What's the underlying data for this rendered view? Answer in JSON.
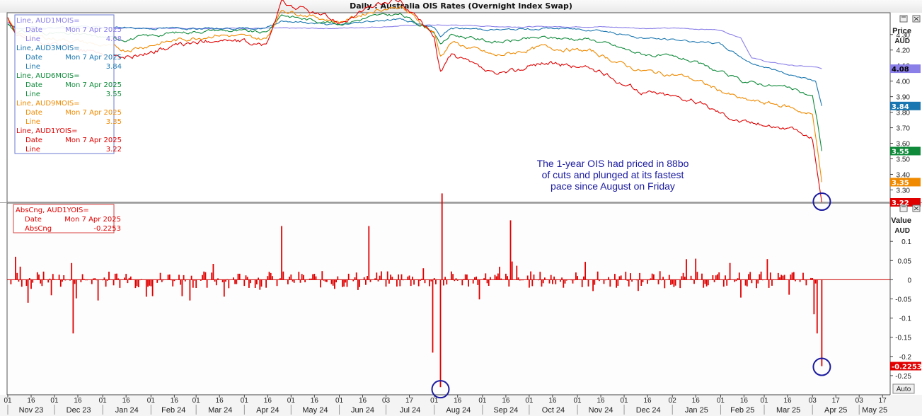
{
  "window": {
    "title": "Daily : Australia OIS Rates (Overnight Index Swap)"
  },
  "colors": {
    "AUD1MOIS": "#8a7fe8",
    "AUD3MOIS": "#1a76b0",
    "AUD6MOIS": "#0f8a3a",
    "AUD9MOIS": "#f08a00",
    "AUD1YOIS": "#e00000",
    "annotation_text": "#1a1aa0",
    "circle": "#1a1aa0"
  },
  "price_panel": {
    "axis_title": "Price",
    "axis_unit": "AUD",
    "legend": [
      {
        "series": "Line, AUD1MOIS=",
        "date_label": "Date",
        "date": "Mon 7 Apr 2025",
        "value_label": "Line",
        "value": "4.08",
        "color": "#8a7fe8"
      },
      {
        "series": "Line, AUD3MOIS=",
        "date_label": "Date",
        "date": "Mon 7 Apr 2025",
        "value_label": "Line",
        "value": "3.84",
        "color": "#1a76b0"
      },
      {
        "series": "Line, AUD6MOIS=",
        "date_label": "Date",
        "date": "Mon 7 Apr 2025",
        "value_label": "Line",
        "value": "3.55",
        "color": "#0f8a3a"
      },
      {
        "series": "Line, AUD9MOIS=",
        "date_label": "Date",
        "date": "Mon 7 Apr 2025",
        "value_label": "Line",
        "value": "3.35",
        "color": "#f08a00"
      },
      {
        "series": "Line, AUD1YOIS=",
        "date_label": "Date",
        "date": "Mon 7 Apr 2025",
        "value_label": "Line",
        "value": "3.22",
        "color": "#e00000"
      }
    ],
    "annotation": [
      "The 1-year OIS had priced in 88bo",
      "of cuts and plunged at its fastest",
      "pace since August on Friday"
    ]
  },
  "change_panel": {
    "axis_title": "Value",
    "axis_unit": "AUD",
    "legend": {
      "series": "AbsCng, AUD1YOIS=",
      "date_label": "Date",
      "date": "Mon 7 Apr 2025",
      "value_label": "AbsCng",
      "value": "-0.2253",
      "color": "#e00000"
    },
    "value_tag": "-0.2253",
    "auto_button": "Auto"
  },
  "chart_data": [
    {
      "type": "line",
      "title": "Daily : Australia OIS Rates (Overnight Index Swap)",
      "ylabel": "Price AUD",
      "ylim": [
        3.22,
        4.44
      ],
      "y_ticks": [
        "4.30",
        "4.20",
        "4.10",
        "4.00",
        "3.90",
        "3.80",
        "3.70",
        "3.60",
        "3.50",
        "3.40",
        "3.30"
      ],
      "x_range": [
        "2023-11-01",
        "2025-05-20"
      ],
      "grid": false,
      "legend_position": "top-left",
      "series": [
        {
          "name": "AUD1MOIS=",
          "color": "#8a7fe8",
          "points": [
            [
              "2023-11-01",
              4.38
            ],
            [
              "2023-11-06",
              4.34
            ],
            [
              "2023-11-30",
              4.34
            ],
            [
              "2024-01-31",
              4.34
            ],
            [
              "2024-03-31",
              4.34
            ],
            [
              "2024-04-30",
              4.34
            ],
            [
              "2024-05-31",
              4.34
            ],
            [
              "2024-06-30",
              4.35
            ],
            [
              "2024-07-20",
              4.36
            ],
            [
              "2024-08-15",
              4.36
            ],
            [
              "2024-09-15",
              4.35
            ],
            [
              "2024-10-15",
              4.35
            ],
            [
              "2024-11-15",
              4.35
            ],
            [
              "2024-12-15",
              4.34
            ],
            [
              "2025-01-05",
              4.34
            ],
            [
              "2025-01-31",
              4.33
            ],
            [
              "2025-02-14",
              4.28
            ],
            [
              "2025-02-21",
              4.15
            ],
            [
              "2025-03-05",
              4.12
            ],
            [
              "2025-03-20",
              4.1
            ],
            [
              "2025-04-04",
              4.09
            ],
            [
              "2025-04-07",
              4.08
            ]
          ]
        },
        {
          "name": "AUD3MOIS=",
          "color": "#1a76b0",
          "points": [
            [
              "2023-11-01",
              4.36
            ],
            [
              "2023-11-06",
              4.34
            ],
            [
              "2023-12-15",
              4.35
            ],
            [
              "2024-01-31",
              4.34
            ],
            [
              "2024-03-15",
              4.34
            ],
            [
              "2024-04-15",
              4.34
            ],
            [
              "2024-04-25",
              4.39
            ],
            [
              "2024-05-31",
              4.36
            ],
            [
              "2024-06-25",
              4.39
            ],
            [
              "2024-07-10",
              4.4
            ],
            [
              "2024-08-01",
              4.34
            ],
            [
              "2024-08-05",
              4.29
            ],
            [
              "2024-08-12",
              4.34
            ],
            [
              "2024-09-15",
              4.33
            ],
            [
              "2024-10-15",
              4.34
            ],
            [
              "2024-11-15",
              4.33
            ],
            [
              "2024-12-10",
              4.28
            ],
            [
              "2025-01-10",
              4.26
            ],
            [
              "2025-01-31",
              4.24
            ],
            [
              "2025-02-20",
              4.12
            ],
            [
              "2025-03-15",
              4.05
            ],
            [
              "2025-04-03",
              4.0
            ],
            [
              "2025-04-07",
              3.84
            ]
          ]
        },
        {
          "name": "AUD6MOIS=",
          "color": "#0f8a3a",
          "points": [
            [
              "2023-11-01",
              4.37
            ],
            [
              "2023-11-06",
              4.32
            ],
            [
              "2023-12-15",
              4.3
            ],
            [
              "2024-01-15",
              4.27
            ],
            [
              "2024-02-15",
              4.31
            ],
            [
              "2024-03-15",
              4.33
            ],
            [
              "2024-04-15",
              4.31
            ],
            [
              "2024-04-25",
              4.43
            ],
            [
              "2024-05-10",
              4.4
            ],
            [
              "2024-06-01",
              4.37
            ],
            [
              "2024-06-25",
              4.42
            ],
            [
              "2024-07-10",
              4.43
            ],
            [
              "2024-08-01",
              4.32
            ],
            [
              "2024-08-05",
              4.23
            ],
            [
              "2024-08-12",
              4.3
            ],
            [
              "2024-09-10",
              4.25
            ],
            [
              "2024-10-10",
              4.28
            ],
            [
              "2024-11-10",
              4.27
            ],
            [
              "2024-12-10",
              4.18
            ],
            [
              "2025-01-10",
              4.14
            ],
            [
              "2025-02-15",
              4.0
            ],
            [
              "2025-03-15",
              3.96
            ],
            [
              "2025-04-01",
              3.9
            ],
            [
              "2025-04-04",
              3.75
            ],
            [
              "2025-04-07",
              3.55
            ]
          ]
        },
        {
          "name": "AUD9MOIS=",
          "color": "#f08a00",
          "points": [
            [
              "2023-11-01",
              4.4
            ],
            [
              "2023-11-06",
              4.3
            ],
            [
              "2023-12-15",
              4.26
            ],
            [
              "2024-01-15",
              4.2
            ],
            [
              "2024-02-15",
              4.26
            ],
            [
              "2024-03-15",
              4.3
            ],
            [
              "2024-04-15",
              4.27
            ],
            [
              "2024-04-25",
              4.46
            ],
            [
              "2024-05-10",
              4.43
            ],
            [
              "2024-06-01",
              4.38
            ],
            [
              "2024-06-25",
              4.46
            ],
            [
              "2024-07-10",
              4.48
            ],
            [
              "2024-08-01",
              4.31
            ],
            [
              "2024-08-05",
              4.16
            ],
            [
              "2024-08-12",
              4.25
            ],
            [
              "2024-09-10",
              4.16
            ],
            [
              "2024-10-10",
              4.22
            ],
            [
              "2024-11-10",
              4.19
            ],
            [
              "2024-12-10",
              4.07
            ],
            [
              "2025-01-10",
              4.03
            ],
            [
              "2025-02-15",
              3.88
            ],
            [
              "2025-03-15",
              3.84
            ],
            [
              "2025-04-01",
              3.78
            ],
            [
              "2025-04-04",
              3.58
            ],
            [
              "2025-04-07",
              3.35
            ]
          ]
        },
        {
          "name": "AUD1YOIS=",
          "color": "#e00000",
          "points": [
            [
              "2023-11-01",
              4.41
            ],
            [
              "2023-11-06",
              4.28
            ],
            [
              "2023-12-15",
              4.21
            ],
            [
              "2024-01-15",
              4.15
            ],
            [
              "2024-02-15",
              4.22
            ],
            [
              "2024-03-15",
              4.27
            ],
            [
              "2024-04-15",
              4.23
            ],
            [
              "2024-04-25",
              4.5
            ],
            [
              "2024-05-10",
              4.46
            ],
            [
              "2024-06-01",
              4.38
            ],
            [
              "2024-06-25",
              4.49
            ],
            [
              "2024-07-10",
              4.52
            ],
            [
              "2024-08-01",
              4.29
            ],
            [
              "2024-08-05",
              4.06
            ],
            [
              "2024-08-12",
              4.17
            ],
            [
              "2024-09-10",
              4.03
            ],
            [
              "2024-10-10",
              4.12
            ],
            [
              "2024-11-10",
              4.08
            ],
            [
              "2024-12-10",
              3.94
            ],
            [
              "2025-01-10",
              3.89
            ],
            [
              "2025-02-15",
              3.74
            ],
            [
              "2025-03-15",
              3.7
            ],
            [
              "2025-04-01",
              3.63
            ],
            [
              "2025-04-04",
              3.42
            ],
            [
              "2025-04-07",
              3.22
            ]
          ]
        }
      ]
    },
    {
      "type": "bar",
      "title": "AbsCng, AUD1YOIS=",
      "ylabel": "Value AUD",
      "ylim": [
        -0.3,
        0.2
      ],
      "y_ticks": [
        "0.1",
        "0.05",
        "0",
        "-0.05",
        "-0.1",
        "-0.15",
        "-0.2",
        "-0.25"
      ],
      "x_range": [
        "2023-11-01",
        "2025-05-20"
      ],
      "x_tick_labels": [
        "01",
        "16",
        "01",
        "16",
        "01",
        "16",
        "01",
        "16",
        "01",
        "16",
        "01",
        "16",
        "01",
        "16",
        "01",
        "16",
        "03",
        "17",
        "01",
        "16",
        "01",
        "16",
        "01",
        "16",
        "01",
        "16",
        "01",
        "16",
        "02",
        "16",
        "01",
        "16",
        "01",
        "16",
        "03",
        "17",
        "03",
        "17",
        "01",
        "16",
        "01",
        "16"
      ],
      "month_labels": [
        "Nov 23",
        "Dec 23",
        "Jan 24",
        "Feb 24",
        "Mar 24",
        "Apr 24",
        "May 24",
        "Jun 24",
        "Jul 24",
        "Aug 24",
        "Sep 24",
        "Oct 24",
        "Nov 24",
        "Dec 24",
        "Jan 25",
        "Feb 25",
        "Mar 25",
        "Apr 25",
        "May 25"
      ],
      "notable_values": [
        [
          "2023-11-06",
          0.06
        ],
        [
          "2023-11-14",
          -0.06
        ],
        [
          "2023-12-13",
          -0.14
        ],
        [
          "2024-04-25",
          0.14
        ],
        [
          "2024-06-20",
          0.14
        ],
        [
          "2024-07-31",
          -0.19
        ],
        [
          "2024-08-05",
          -0.28
        ],
        [
          "2024-08-06",
          0.225
        ],
        [
          "2024-09-19",
          0.155
        ],
        [
          "2025-04-02",
          -0.09
        ],
        [
          "2025-04-04",
          -0.14
        ],
        [
          "2025-04-07",
          -0.2253
        ]
      ],
      "series": [
        {
          "name": "AbsCng, AUD1YOIS=",
          "color": "#e00000"
        }
      ]
    }
  ]
}
